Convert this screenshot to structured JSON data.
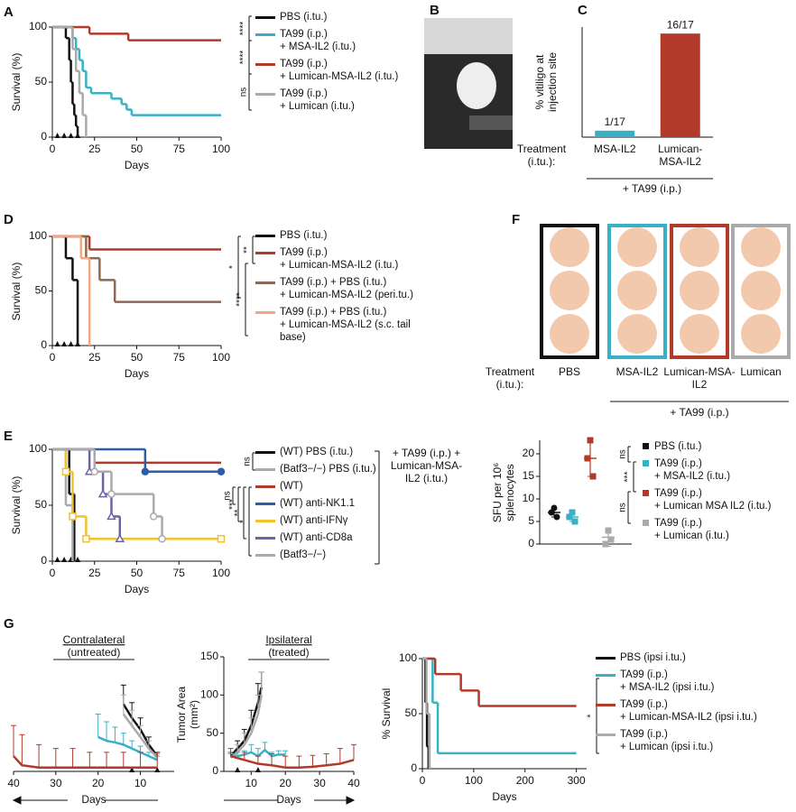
{
  "panel_labels": [
    "A",
    "B",
    "C",
    "D",
    "E",
    "F",
    "G"
  ],
  "well_images": {
    "treatment_label": "Treatment (i.tu.):",
    "labels": [
      "PBS",
      "MSA-IL2",
      "Lumican-MSA-IL2",
      "Lumican"
    ],
    "group_label": "+ TA99 (i.p.)"
  },
  "chart_data": [
    {
      "type": "survival",
      "xlabel": "Days",
      "ylabel": "Survival (%)",
      "xlim": [
        0,
        100
      ],
      "ylim": [
        0,
        100
      ],
      "xticks": [
        0,
        25,
        50,
        75,
        100
      ],
      "yticks": [
        0,
        50,
        100
      ],
      "dosing_days": [
        3,
        7,
        11,
        15
      ],
      "significance": [
        "****",
        "****",
        "ns"
      ],
      "series": [
        {
          "name": "PBS (i.tu.)",
          "color": "#111111",
          "x": [
            0,
            8,
            10,
            11,
            12,
            13,
            14,
            15
          ],
          "values": [
            100,
            90,
            70,
            50,
            30,
            20,
            10,
            0
          ]
        },
        {
          "name": "TA99 (i.p.) + MSA-IL2 (i.tu.)",
          "color": "#3ab0c6",
          "x": [
            0,
            12,
            14,
            16,
            18,
            20,
            23,
            35,
            41,
            44,
            47,
            100
          ],
          "values": [
            100,
            90,
            80,
            70,
            60,
            45,
            40,
            35,
            30,
            25,
            20,
            20
          ]
        },
        {
          "name": "TA99 (i.p.) + Lumican-MSA-IL2 (i.tu.)",
          "color": "#b23a2a",
          "x": [
            0,
            22,
            45,
            100
          ],
          "values": [
            100,
            94,
            88,
            88
          ]
        },
        {
          "name": "TA99 (i.p.) + Lumican (i.tu.)",
          "color": "#aaaaaa",
          "x": [
            0,
            12,
            14,
            16,
            18,
            20
          ],
          "values": [
            100,
            80,
            60,
            40,
            20,
            0
          ]
        }
      ]
    },
    {
      "type": "bar",
      "ylabel": "% vitiligo at injection site",
      "ylim": [
        0,
        100
      ],
      "treatment_label": "Treatment (i.tu.):",
      "group_label": "+ TA99 (i.p.)",
      "categories": [
        "MSA-IL2",
        "Lumican-MSA-IL2"
      ],
      "values": [
        5.9,
        94.1
      ],
      "value_labels": [
        "1/17",
        "16/17"
      ],
      "colors": [
        "#3ab0c6",
        "#b23a2a"
      ]
    },
    {
      "type": "survival",
      "xlabel": "Days",
      "ylabel": "Survival (%)",
      "xlim": [
        0,
        100
      ],
      "ylim": [
        0,
        100
      ],
      "xticks": [
        0,
        25,
        50,
        75,
        100
      ],
      "yticks": [
        0,
        50,
        100
      ],
      "dosing_days": [
        3,
        7,
        11,
        15
      ],
      "significance": [
        "**",
        "*",
        "****"
      ],
      "series": [
        {
          "name": "PBS (i.tu.)",
          "color": "#111111",
          "x": [
            0,
            8,
            12,
            15
          ],
          "values": [
            100,
            80,
            60,
            0
          ]
        },
        {
          "name": "TA99 (i.p.) + Lumican-MSA-IL2 (i.tu.)",
          "color": "#b23a2a",
          "x": [
            0,
            22,
            100
          ],
          "values": [
            100,
            88,
            88
          ]
        },
        {
          "name": "TA99 (i.p.) + PBS (i.tu.) + Lumican-MSA-IL2 (peri.tu.)",
          "color": "#8a6a55",
          "x": [
            0,
            20,
            28,
            37,
            100
          ],
          "values": [
            100,
            80,
            60,
            40,
            40
          ]
        },
        {
          "name": "TA99 (i.p.) + PBS (i.tu.) + Lumican-MSA-IL2 (s.c. tail base)",
          "color": "#f4a582",
          "x": [
            0,
            17,
            22
          ],
          "values": [
            100,
            80,
            0
          ]
        }
      ]
    },
    {
      "type": "survival",
      "xlabel": "Days",
      "ylabel": "Survival (%)",
      "xlim": [
        0,
        100
      ],
      "ylim": [
        0,
        100
      ],
      "xticks": [
        0,
        25,
        50,
        75,
        100
      ],
      "yticks": [
        0,
        50,
        100
      ],
      "dosing_days": [
        3,
        7,
        11,
        15
      ],
      "significance": [
        "ns",
        "ns",
        "***",
        "**",
        "*"
      ],
      "group_label": "+ TA99 (i.p.) + Lumican-MSA-IL2 (i.tu.)",
      "series": [
        {
          "name": "(WT) PBS (i.tu.)",
          "color": "#111111",
          "x": [
            0,
            10,
            13
          ],
          "values": [
            100,
            60,
            0
          ]
        },
        {
          "name": "(Batf3−/−) PBS (i.tu.)",
          "color": "#aaaaaa",
          "x": [
            0,
            8,
            12
          ],
          "values": [
            100,
            50,
            0
          ]
        },
        {
          "name": "(WT)",
          "color": "#b23a2a",
          "x": [
            0,
            25,
            100
          ],
          "values": [
            100,
            88,
            88
          ]
        },
        {
          "name": "(WT) anti-NK1.1",
          "color": "#2a5ea8",
          "marker": "circle-filled",
          "x": [
            0,
            55,
            100
          ],
          "values": [
            100,
            80,
            80
          ]
        },
        {
          "name": "(WT) anti-IFNγ",
          "color": "#f2c12e",
          "marker": "square-open",
          "x": [
            0,
            8,
            12,
            20,
            100
          ],
          "values": [
            100,
            80,
            40,
            20,
            20
          ]
        },
        {
          "name": "(WT) anti-CD8a",
          "color": "#6a64a8",
          "marker": "triangle-open",
          "x": [
            0,
            22,
            30,
            35,
            40
          ],
          "values": [
            100,
            80,
            60,
            40,
            20
          ]
        },
        {
          "name": "(Batf3−/−)",
          "color": "#aaaaaa",
          "marker": "circle-open",
          "x": [
            0,
            25,
            35,
            60,
            65
          ],
          "values": [
            100,
            80,
            60,
            40,
            20
          ]
        }
      ]
    },
    {
      "type": "dot",
      "ylabel": "SFU per 10⁶ splenocytes",
      "ylim": [
        0,
        23
      ],
      "yticks": [
        0,
        5,
        10,
        15,
        20
      ],
      "significance": [
        "ns",
        "***",
        "ns"
      ],
      "series": [
        {
          "name": "PBS (i.tu.)",
          "color": "#111111",
          "marker": "circle",
          "values": [
            7,
            8,
            6
          ],
          "mean": 7,
          "sd": 1
        },
        {
          "name": "TA99 (i.p.) + MSA-IL2 (i.tu.)",
          "color": "#3ab0c6",
          "marker": "square",
          "values": [
            6,
            7,
            5
          ],
          "mean": 6,
          "sd": 1
        },
        {
          "name": "TA99 (i.p.) + Lumican MSA IL2 (i.tu.)",
          "color": "#b23a2a",
          "marker": "square",
          "values": [
            19,
            23,
            15
          ],
          "mean": 19,
          "sd": 4
        },
        {
          "name": "TA99 (i.p.) + Lumican (i.tu.)",
          "color": "#aaaaaa",
          "marker": "square",
          "values": [
            0,
            3,
            1
          ],
          "mean": 1.5,
          "sd": 2
        }
      ]
    },
    {
      "type": "line",
      "title": "Contralateral",
      "subtitle": "(untreated)",
      "xlabel": "Days",
      "xlim": [
        40,
        2
      ],
      "ylim": [
        0,
        150
      ],
      "xticks": [
        40,
        30,
        20,
        10
      ],
      "dosing_days": [
        6,
        12
      ],
      "series": [
        {
          "color": "#111111",
          "x": [
            6,
            8,
            10,
            12,
            14
          ],
          "values": [
            20,
            35,
            55,
            70,
            88
          ],
          "errors": [
            5,
            10,
            15,
            20,
            25
          ]
        },
        {
          "color": "#aaaaaa",
          "x": [
            6,
            8,
            10,
            12,
            14
          ],
          "values": [
            18,
            30,
            45,
            60,
            75
          ],
          "errors": [
            5,
            10,
            15,
            20,
            25
          ]
        },
        {
          "color": "#3ab0c6",
          "x": [
            6,
            8,
            10,
            12,
            14,
            16,
            18,
            20
          ],
          "values": [
            15,
            20,
            25,
            30,
            35,
            38,
            40,
            45
          ],
          "errors": [
            5,
            5,
            8,
            10,
            15,
            20,
            25,
            30
          ]
        },
        {
          "color": "#b23a2a",
          "x": [
            6,
            10,
            14,
            18,
            22,
            26,
            30,
            34,
            38,
            40
          ],
          "values": [
            5,
            5,
            5,
            5,
            5,
            5,
            5,
            5,
            8,
            20
          ],
          "errors": [
            20,
            20,
            20,
            20,
            20,
            25,
            25,
            30,
            40,
            40
          ]
        }
      ]
    },
    {
      "type": "line",
      "title": "Ipsilateral",
      "subtitle": "(treated)",
      "xlabel": "Days",
      "ylabel": "Tumor Area (mm²)",
      "xlim": [
        2,
        40
      ],
      "ylim": [
        0,
        150
      ],
      "xticks": [
        10,
        20,
        30,
        40
      ],
      "yticks": [
        0,
        50,
        100,
        150
      ],
      "dosing_days": [
        6,
        12
      ],
      "series": [
        {
          "color": "#111111",
          "x": [
            4,
            6,
            8,
            10,
            12,
            13
          ],
          "values": [
            20,
            30,
            40,
            60,
            90,
            110
          ],
          "errors": [
            5,
            10,
            15,
            20,
            25,
            20
          ]
        },
        {
          "color": "#aaaaaa",
          "x": [
            4,
            6,
            8,
            10,
            12,
            13
          ],
          "values": [
            18,
            25,
            35,
            50,
            75,
            100
          ],
          "errors": [
            5,
            10,
            15,
            20,
            25,
            30
          ]
        },
        {
          "color": "#3ab0c6",
          "x": [
            4,
            6,
            8,
            10,
            12,
            14,
            16,
            18,
            20
          ],
          "values": [
            20,
            20,
            22,
            25,
            20,
            28,
            20,
            22,
            22
          ],
          "errors": [
            5,
            5,
            5,
            10,
            10,
            10,
            5,
            5,
            5
          ]
        },
        {
          "color": "#b23a2a",
          "x": [
            4,
            8,
            12,
            16,
            20,
            24,
            28,
            32,
            36,
            40
          ],
          "values": [
            20,
            15,
            10,
            8,
            5,
            5,
            6,
            8,
            10,
            15
          ],
          "errors": [
            10,
            10,
            10,
            15,
            15,
            15,
            15,
            15,
            20,
            20
          ]
        }
      ]
    },
    {
      "type": "survival",
      "xlabel": "Days",
      "ylabel": "% Survival",
      "xlim": [
        0,
        320
      ],
      "ylim": [
        0,
        100
      ],
      "xticks": [
        0,
        100,
        200,
        300
      ],
      "yticks": [
        0,
        50,
        100
      ],
      "significance": [
        "*"
      ],
      "series": [
        {
          "name": "PBS (ipsi i.tu.)",
          "color": "#111111",
          "x": [
            0,
            6,
            9,
            12
          ],
          "values": [
            100,
            60,
            20,
            0
          ]
        },
        {
          "name": "TA99 (i.p.) + MSA-IL2 (ipsi i.tu.)",
          "color": "#3ab0c6",
          "x": [
            0,
            20,
            30,
            300
          ],
          "values": [
            100,
            60,
            14,
            14
          ]
        },
        {
          "name": "TA99 (i.p.) + Lumican-MSA-IL2 (ipsi i.tu.)",
          "color": "#b23a2a",
          "x": [
            0,
            25,
            75,
            110,
            300
          ],
          "values": [
            100,
            86,
            71,
            57,
            57
          ]
        },
        {
          "name": "TA99 (i.p.) + Lumican (ipsi i.tu.)",
          "color": "#aaaaaa",
          "x": [
            0,
            8,
            14
          ],
          "values": [
            100,
            50,
            0
          ]
        }
      ]
    }
  ]
}
